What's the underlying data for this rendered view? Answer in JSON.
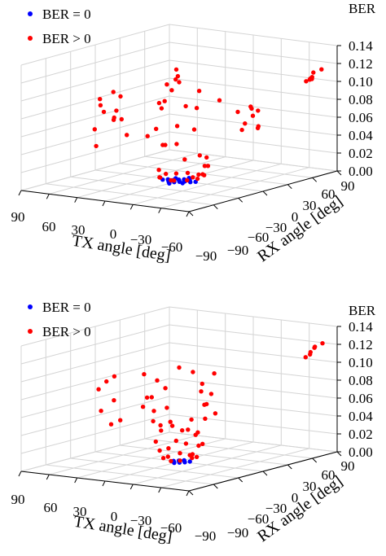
{
  "chart_data": [
    {
      "type": "scatter3d",
      "xlabel": "TX angle [deg]",
      "ylabel": "RX angle [deg]",
      "zlabel": "BER",
      "xticks": [
        "90",
        "60",
        "30",
        "0",
        "−30",
        "−60",
        "−90"
      ],
      "yticks": [
        "−90",
        "−60",
        "−30",
        "0",
        "30",
        "60",
        "90"
      ],
      "zticks": [
        "0.00",
        "0.02",
        "0.04",
        "0.06",
        "0.08",
        "0.10",
        "0.12",
        "0.14"
      ],
      "xlim": [
        90,
        -90
      ],
      "ylim": [
        -90,
        90
      ],
      "zlim": [
        0,
        0.14
      ],
      "grid": true,
      "legend": "top-left",
      "series": [
        {
          "name": "BER = 0",
          "color": "#0000ff",
          "points": [
            [
              0,
              0,
              0
            ],
            [
              -3,
              3,
              0
            ],
            [
              3,
              -3,
              0
            ],
            [
              -6,
              0,
              0
            ],
            [
              6,
              0,
              0
            ],
            [
              0,
              6,
              0
            ],
            [
              0,
              -6,
              0
            ],
            [
              -3,
              -3,
              0
            ],
            [
              3,
              3,
              0
            ],
            [
              -9,
              3,
              0
            ],
            [
              9,
              -3,
              0
            ],
            [
              -6,
              6,
              0
            ],
            [
              6,
              -6,
              0
            ],
            [
              -12,
              0,
              0
            ],
            [
              12,
              0,
              0
            ],
            [
              -3,
              9,
              0
            ],
            [
              3,
              -9,
              0
            ],
            [
              -9,
              -6,
              0
            ],
            [
              9,
              6,
              0
            ],
            [
              -15,
              3,
              0
            ],
            [
              15,
              -3,
              0
            ],
            [
              0,
              12,
              0
            ],
            [
              0,
              -12,
              0
            ]
          ]
        },
        {
          "name": "BER > 0",
          "color": "#ff0000",
          "points": [
            [
              0,
              -10,
              0.003
            ],
            [
              -5,
              -12,
              0.004
            ],
            [
              -12,
              -4,
              0.003
            ],
            [
              -18,
              2,
              0.004
            ],
            [
              -18,
              10,
              0.006
            ],
            [
              -12,
              15,
              0.005
            ],
            [
              -5,
              18,
              0.003
            ],
            [
              5,
              16,
              0.004
            ],
            [
              12,
              10,
              0.004
            ],
            [
              16,
              2,
              0.005
            ],
            [
              14,
              -8,
              0.004
            ],
            [
              8,
              -14,
              0.006
            ],
            [
              -20,
              -6,
              0.008
            ],
            [
              20,
              -2,
              0.01
            ],
            [
              -8,
              22,
              0.012
            ],
            [
              -15,
              18,
              0.014
            ],
            [
              10,
              18,
              0.018
            ],
            [
              0,
              25,
              0.022
            ],
            [
              -25,
              5,
              0.028
            ],
            [
              22,
              8,
              0.035
            ],
            [
              0,
              -20,
              0.045
            ],
            [
              -15,
              -20,
              0.048
            ],
            [
              18,
              -18,
              0.052
            ],
            [
              0,
              -28,
              0.065
            ],
            [
              -25,
              -10,
              0.063
            ],
            [
              -10,
              10,
              0.08
            ],
            [
              10,
              -10,
              0.082
            ],
            [
              20,
              5,
              0.085
            ],
            [
              -30,
              15,
              0.09
            ],
            [
              5,
              30,
              0.092
            ],
            [
              15,
              25,
              0.075
            ],
            [
              -5,
              -30,
              0.095
            ],
            [
              0,
              0,
              0.11
            ],
            [
              -20,
              -25,
              0.07
            ],
            [
              75,
              5,
              0.088
            ],
            [
              80,
              -5,
              0.075
            ],
            [
              70,
              8,
              0.083
            ],
            [
              72,
              -10,
              0.07
            ],
            [
              78,
              12,
              0.065
            ],
            [
              85,
              0,
              0.08
            ],
            [
              68,
              -2,
              0.062
            ],
            [
              75,
              15,
              0.055
            ],
            [
              80,
              -12,
              0.05
            ],
            [
              72,
              2,
              0.058
            ],
            [
              65,
              10,
              0.04
            ],
            [
              82,
              -8,
              0.03
            ],
            [
              -75,
              -5,
              0.075
            ],
            [
              -80,
              5,
              0.068
            ],
            [
              -78,
              -12,
              0.07
            ],
            [
              -72,
              8,
              0.08
            ],
            [
              -85,
              0,
              0.072
            ],
            [
              -76,
              2,
              0.09
            ],
            [
              -82,
              -6,
              0.095
            ],
            [
              -70,
              -8,
              0.088
            ],
            [
              -74,
              12,
              0.085
            ],
            [
              70,
              75,
              0.085
            ],
            [
              75,
              70,
              0.08
            ],
            [
              65,
              72,
              0.09
            ],
            [
              72,
              78,
              0.095
            ],
            [
              68,
              68,
              0.075
            ],
            [
              -65,
              85,
              0.1
            ],
            [
              -70,
              82,
              0.102
            ],
            [
              -72,
              80,
              0.105
            ],
            [
              -68,
              86,
              0.108
            ],
            [
              -75,
              88,
              0.112
            ],
            [
              -62,
              84,
              0.098
            ],
            [
              -70,
              80,
              0.103
            ]
          ]
        }
      ]
    },
    {
      "type": "scatter3d",
      "xlabel": "TX angle [deg]",
      "ylabel": "RX angle [deg]",
      "zlabel": "BER",
      "xticks": [
        "90",
        "60",
        "30",
        "0",
        "−30",
        "−60",
        "−90"
      ],
      "yticks": [
        "−90",
        "−60",
        "−30",
        "0",
        "30",
        "60",
        "90"
      ],
      "zticks": [
        "0.00",
        "0.02",
        "0.04",
        "0.06",
        "0.08",
        "0.10",
        "0.12",
        "0.14"
      ],
      "xlim": [
        90,
        -90
      ],
      "ylim": [
        -90,
        90
      ],
      "zlim": [
        0,
        0.14
      ],
      "grid": true,
      "legend": "top-left",
      "series": [
        {
          "name": "BER = 0",
          "color": "#0000ff",
          "points": [
            [
              0,
              0,
              0
            ],
            [
              -3,
              3,
              0
            ],
            [
              3,
              -3,
              0
            ],
            [
              -6,
              0,
              0
            ],
            [
              6,
              0,
              0
            ],
            [
              0,
              6,
              0
            ],
            [
              0,
              -6,
              0
            ],
            [
              -3,
              -3,
              0
            ],
            [
              3,
              3,
              0
            ],
            [
              -8,
              4,
              0
            ]
          ]
        },
        {
          "name": "BER > 0",
          "color": "#ff0000",
          "points": [
            [
              0,
              -10,
              0.003
            ],
            [
              -8,
              -8,
              0.004
            ],
            [
              -12,
              2,
              0.005
            ],
            [
              -10,
              10,
              0.004
            ],
            [
              -2,
              14,
              0.005
            ],
            [
              8,
              10,
              0.006
            ],
            [
              12,
              0,
              0.004
            ],
            [
              9,
              -9,
              0.005
            ],
            [
              -15,
              -4,
              0.01
            ],
            [
              15,
              4,
              0.012
            ],
            [
              -5,
              18,
              0.014
            ],
            [
              5,
              -18,
              0.016
            ],
            [
              -18,
              8,
              0.02
            ],
            [
              18,
              -8,
              0.022
            ],
            [
              0,
              20,
              0.025
            ],
            [
              -10,
              -15,
              0.028
            ],
            [
              10,
              15,
              0.03
            ],
            [
              -20,
              0,
              0.035
            ],
            [
              20,
              0,
              0.038
            ],
            [
              0,
              -22,
              0.04
            ],
            [
              -12,
              18,
              0.045
            ],
            [
              12,
              -18,
              0.048
            ],
            [
              -22,
              -10,
              0.052
            ],
            [
              22,
              10,
              0.055
            ],
            [
              -5,
              25,
              0.058
            ],
            [
              5,
              -25,
              0.062
            ],
            [
              -25,
              5,
              0.066
            ],
            [
              25,
              -5,
              0.07
            ],
            [
              -15,
              22,
              0.072
            ],
            [
              15,
              -22,
              0.075
            ],
            [
              0,
              28,
              0.08
            ],
            [
              -28,
              -5,
              0.083
            ],
            [
              28,
              5,
              0.086
            ],
            [
              -10,
              -28,
              0.09
            ],
            [
              10,
              28,
              0.092
            ],
            [
              -20,
              20,
              0.096
            ],
            [
              20,
              -20,
              0.1
            ],
            [
              0,
              0,
              0.105
            ],
            [
              -30,
              10,
              0.055
            ],
            [
              30,
              -10,
              0.06
            ],
            [
              -5,
              5,
              0.035
            ],
            [
              5,
              -5,
              0.045
            ],
            [
              -25,
              -20,
              0.028
            ],
            [
              25,
              20,
              0.032
            ],
            [
              78,
              0,
              0.08
            ],
            [
              74,
              5,
              0.085
            ],
            [
              82,
              -5,
              0.072
            ],
            [
              70,
              0,
              0.06
            ],
            [
              75,
              -10,
              0.05
            ],
            [
              72,
              10,
              0.035
            ],
            [
              80,
              8,
              0.03
            ],
            [
              -75,
              80,
              0.118
            ],
            [
              -70,
              85,
              0.115
            ],
            [
              -72,
              78,
              0.112
            ],
            [
              -68,
              82,
              0.108
            ],
            [
              -76,
              88,
              0.12
            ],
            [
              -65,
              80,
              0.105
            ]
          ]
        }
      ]
    }
  ]
}
